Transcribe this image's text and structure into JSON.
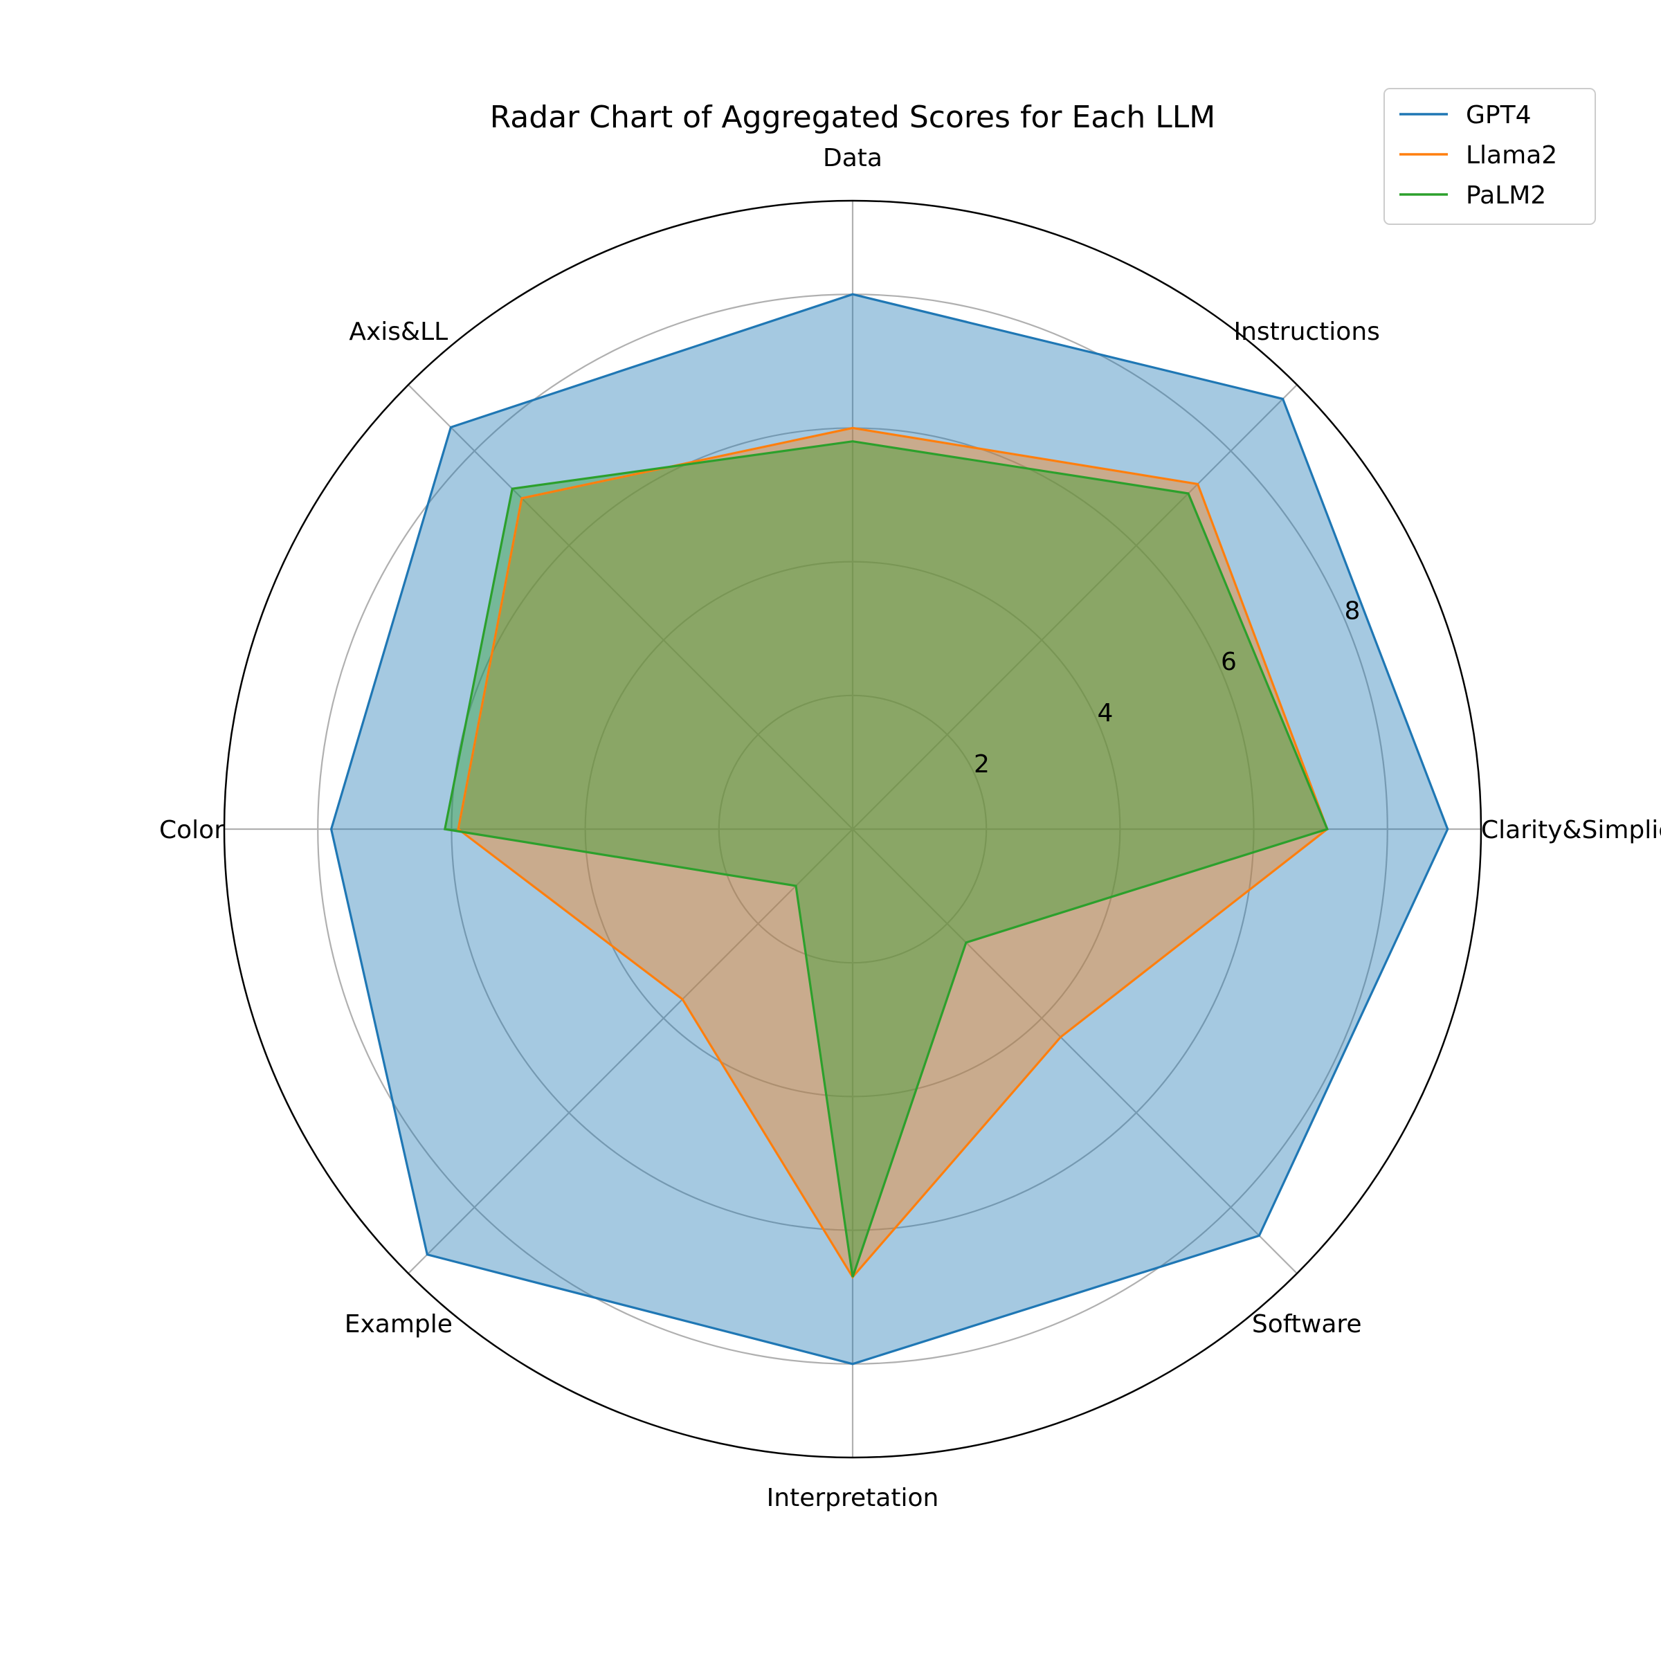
{
  "chart_data": {
    "type": "radar",
    "title": "Radar Chart of Aggregated Scores for Each LLM",
    "categories": [
      "Clarity&Simplicity",
      "Instructions",
      "Data",
      "Axis&LL",
      "Color",
      "Example",
      "Interpretation",
      "Software"
    ],
    "rlim": [
      0,
      9.4
    ],
    "r_ticks": [
      2,
      4,
      6,
      8
    ],
    "grid": true,
    "legend_position": "top-right",
    "series": [
      {
        "name": "GPT4",
        "color": "#1f77b4",
        "values": [
          8.9,
          9.1,
          8.0,
          8.5,
          7.8,
          9.0,
          8.0,
          8.6
        ]
      },
      {
        "name": "Llama2",
        "color": "#ff7f0e",
        "values": [
          7.1,
          7.3,
          6.0,
          7.0,
          5.9,
          3.6,
          6.7,
          4.4
        ]
      },
      {
        "name": "PaLM2",
        "color": "#2ca02c",
        "values": [
          7.1,
          7.1,
          5.8,
          7.2,
          6.1,
          1.2,
          6.7,
          2.4
        ]
      }
    ]
  }
}
